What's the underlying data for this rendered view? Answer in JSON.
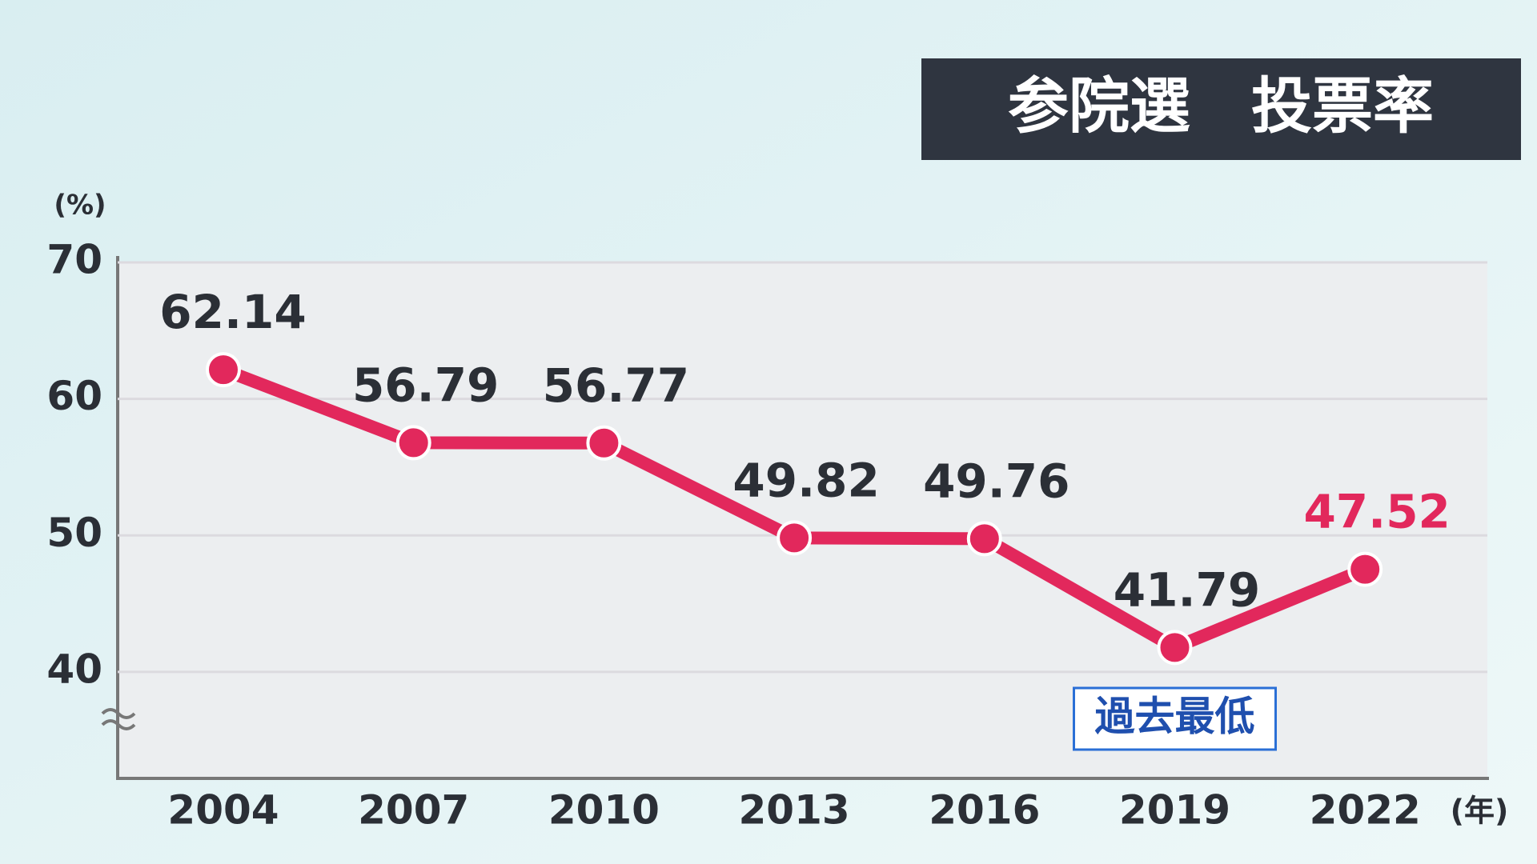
{
  "chart_data": {
    "type": "line",
    "title": "参院選　投票率",
    "y_unit": "(%)",
    "x_unit": "(年)",
    "categories": [
      "2004",
      "2007",
      "2010",
      "2013",
      "2016",
      "2019",
      "2022"
    ],
    "series": [
      {
        "name": "投票率",
        "color": "#e2285c",
        "values": [
          62.14,
          56.79,
          56.77,
          49.82,
          49.76,
          41.79,
          47.52
        ]
      }
    ],
    "value_label_colors": [
      "#2b2f36",
      "#2b2f36",
      "#2b2f36",
      "#2b2f36",
      "#2b2f36",
      "#2b2f36",
      "#e2285c"
    ],
    "ylim": [
      32.2,
      70
    ],
    "yticks": [
      40,
      50,
      60,
      70
    ],
    "grid": true,
    "annotation": {
      "text": "過去最低",
      "category": "2019"
    }
  }
}
